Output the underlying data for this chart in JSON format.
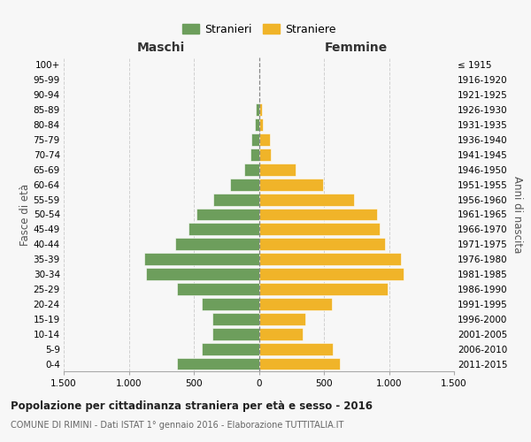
{
  "age_groups": [
    "100+",
    "95-99",
    "90-94",
    "85-89",
    "80-84",
    "75-79",
    "70-74",
    "65-69",
    "60-64",
    "55-59",
    "50-54",
    "45-49",
    "40-44",
    "35-39",
    "30-34",
    "25-29",
    "20-24",
    "15-19",
    "10-14",
    "5-9",
    "0-4"
  ],
  "birth_years": [
    "≤ 1915",
    "1916-1920",
    "1921-1925",
    "1926-1930",
    "1931-1935",
    "1936-1940",
    "1941-1945",
    "1946-1950",
    "1951-1955",
    "1956-1960",
    "1961-1965",
    "1966-1970",
    "1971-1975",
    "1976-1980",
    "1981-1985",
    "1986-1990",
    "1991-1995",
    "1996-2000",
    "2001-2005",
    "2006-2010",
    "2011-2015"
  ],
  "maschi": [
    0,
    0,
    0,
    22,
    28,
    55,
    65,
    110,
    220,
    350,
    480,
    540,
    640,
    880,
    870,
    630,
    440,
    360,
    360,
    440,
    630
  ],
  "femmine": [
    0,
    0,
    0,
    22,
    32,
    85,
    95,
    280,
    490,
    730,
    910,
    930,
    970,
    1090,
    1110,
    990,
    560,
    360,
    335,
    565,
    625
  ],
  "male_color": "#6d9e5c",
  "female_color": "#f0b429",
  "background_color": "#f7f7f7",
  "grid_color": "#d0d0d0",
  "title": "Popolazione per cittadinanza straniera per età e sesso - 2016",
  "subtitle": "COMUNE DI RIMINI - Dati ISTAT 1° gennaio 2016 - Elaborazione TUTTITALIA.IT",
  "xlabel_left": "Maschi",
  "xlabel_right": "Femmine",
  "ylabel_left": "Fasce di età",
  "ylabel_right": "Anni di nascita",
  "legend_male": "Stranieri",
  "legend_female": "Straniere",
  "xlim": 1500,
  "xticks": [
    -1500,
    -1000,
    -500,
    0,
    500,
    1000,
    1500
  ],
  "xtick_labels": [
    "1.500",
    "1.000",
    "500",
    "0",
    "500",
    "1.000",
    "1.500"
  ]
}
